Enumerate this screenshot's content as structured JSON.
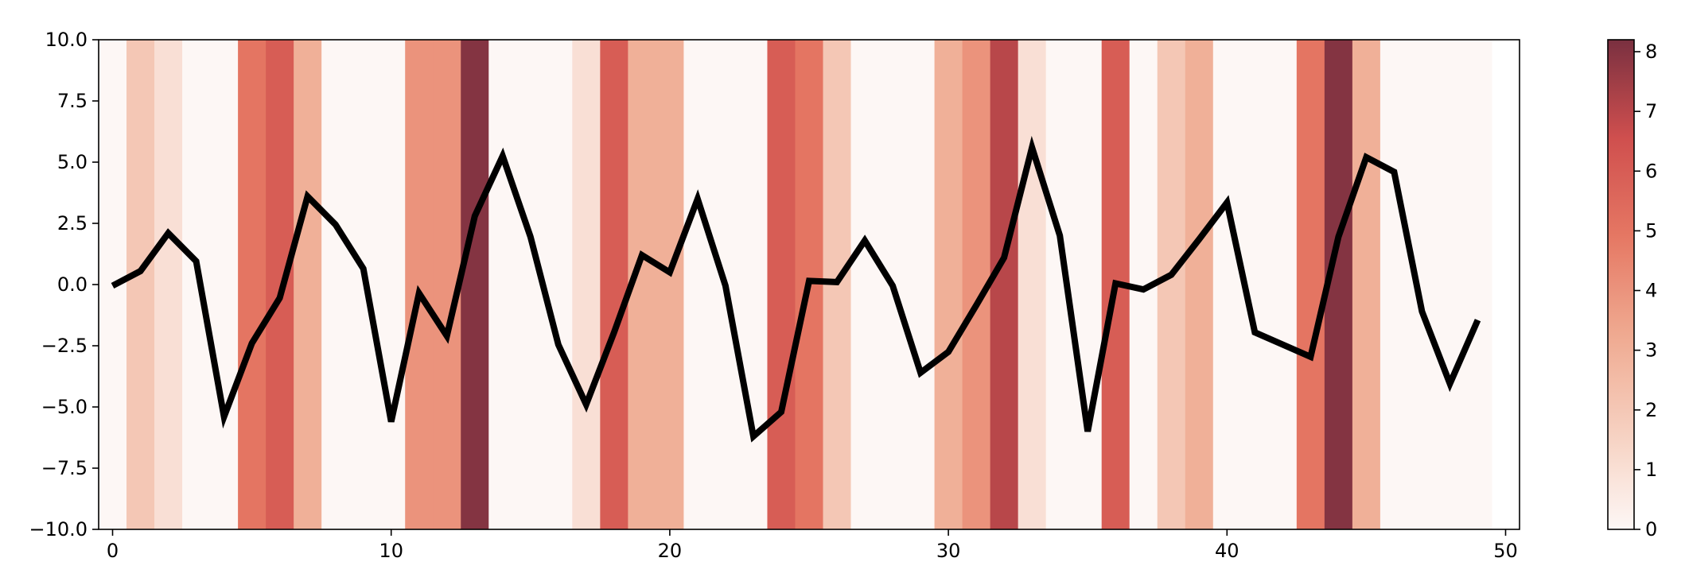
{
  "chart_data": {
    "type": "line",
    "background": "heatmap-bands",
    "xlim": [
      -0.5,
      50.5
    ],
    "ylim": [
      -10,
      10
    ],
    "xticks": [
      0,
      10,
      20,
      30,
      40,
      50
    ],
    "xtick_labels": [
      "0",
      "10",
      "20",
      "30",
      "40",
      "50"
    ],
    "yticks": [
      10,
      7.5,
      5,
      2.5,
      0,
      -2.5,
      -5,
      -7.5,
      -10
    ],
    "ytick_labels": [
      "10.0",
      "7.5",
      "5.0",
      "2.5",
      "0.0",
      "−2.5",
      "−5.0",
      "−7.5",
      "−10.0"
    ],
    "line": {
      "color": "#000000",
      "x": [
        0,
        1,
        2,
        3,
        4,
        5,
        6,
        7,
        8,
        9,
        10,
        11,
        12,
        13,
        14,
        15,
        16,
        17,
        18,
        19,
        20,
        21,
        22,
        23,
        24,
        25,
        26,
        27,
        28,
        29,
        30,
        31,
        32,
        33,
        34,
        35,
        36,
        37,
        38,
        39,
        40,
        41,
        42,
        43,
        44,
        45,
        46,
        47,
        48,
        49
      ],
      "y": [
        -0.05,
        0.55,
        2.1,
        0.95,
        -5.4,
        -2.4,
        -0.55,
        3.6,
        2.45,
        0.65,
        -5.6,
        -0.35,
        -2.1,
        2.8,
        5.25,
        1.95,
        -2.45,
        -4.9,
        -1.95,
        1.2,
        0.5,
        3.5,
        -0.05,
        -6.2,
        -5.2,
        0.15,
        0.1,
        1.8,
        -0.05,
        -3.6,
        -2.75,
        -0.85,
        1.1,
        5.6,
        2.0,
        -6.0,
        0.05,
        -0.2,
        0.4,
        1.85,
        3.35,
        -1.95,
        -2.45,
        -2.95,
        1.95,
        5.2,
        4.6,
        -1.1,
        -4.05,
        -1.45
      ]
    },
    "heat_values": [
      0,
      2,
      1,
      0,
      0,
      5,
      6,
      3,
      0,
      0,
      0,
      4,
      4,
      8,
      0,
      0,
      0,
      1,
      6,
      3,
      3,
      0,
      0,
      0,
      6,
      5,
      2,
      0,
      0,
      0,
      3,
      4,
      7,
      1,
      0,
      0,
      6,
      0,
      2,
      3,
      0,
      0,
      0,
      5,
      8,
      3,
      0,
      0,
      0,
      0
    ],
    "colorbar": {
      "min": 0,
      "max": 8.2,
      "ticks": [
        0,
        1,
        2,
        3,
        4,
        5,
        6,
        7,
        8
      ],
      "tick_labels": [
        "0",
        "1",
        "2",
        "3",
        "4",
        "5",
        "6",
        "7",
        "8"
      ],
      "colormap": [
        "#fdf7f5",
        "#f6d0c0",
        "#efa990",
        "#e57763",
        "#cf4f4e",
        "#7a3040"
      ]
    }
  }
}
